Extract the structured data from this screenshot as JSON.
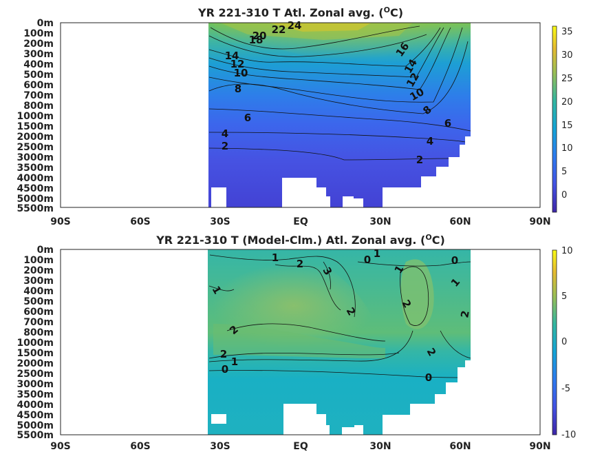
{
  "chart_data": [
    {
      "type": "heatmap",
      "title_main": "YR 221-310 T Atl. Zonal avg. (",
      "title_sup": "O",
      "title_end": "C)",
      "x_ticks": [
        "90S",
        "60S",
        "30S",
        "EQ",
        "30N",
        "60N",
        "90N"
      ],
      "x_values": [
        -90,
        -60,
        -30,
        0,
        30,
        60,
        90
      ],
      "y_ticks": [
        "0m",
        "100m",
        "200m",
        "300m",
        "400m",
        "500m",
        "600m",
        "700m",
        "800m",
        "1000m",
        "1500m",
        "2000m",
        "2500m",
        "3000m",
        "3500m",
        "4000m",
        "4500m",
        "5000m",
        "5500m"
      ],
      "colorbar_ticks": [
        "35",
        "30",
        "25",
        "20",
        "15",
        "10",
        "5",
        "0"
      ],
      "colorbar_values": [
        35,
        30,
        25,
        20,
        15,
        10,
        5,
        0
      ],
      "colorbar_range": [
        -3,
        36
      ],
      "contour_labels": [
        "24",
        "22",
        "20",
        "18",
        "16",
        "14",
        "14",
        "12",
        "12",
        "10",
        "10",
        "8",
        "8",
        "6",
        "6",
        "4",
        "4",
        "2",
        "2"
      ],
      "colormap": "parula"
    },
    {
      "type": "heatmap",
      "title_main": "YR 221-310 T (Model-Clm.) Atl. Zonal avg. (",
      "title_sup": "O",
      "title_end": "C)",
      "x_ticks": [
        "90S",
        "60S",
        "30S",
        "EQ",
        "30N",
        "60N",
        "90N"
      ],
      "x_values": [
        -90,
        -60,
        -30,
        0,
        30,
        60,
        90
      ],
      "y_ticks": [
        "0m",
        "100m",
        "200m",
        "300m",
        "400m",
        "500m",
        "600m",
        "700m",
        "800m",
        "1000m",
        "1500m",
        "2000m",
        "2500m",
        "3000m",
        "3500m",
        "4000m",
        "4500m",
        "5000m",
        "5500m"
      ],
      "colorbar_ticks": [
        "10",
        "5",
        "0",
        "-5",
        "-10"
      ],
      "colorbar_values": [
        10,
        5,
        0,
        -5,
        -10
      ],
      "colorbar_range": [
        -10,
        10
      ],
      "contour_labels": [
        "1",
        "2",
        "3",
        "0",
        "1",
        "0",
        "1",
        "1",
        "2",
        "2",
        "2",
        "2",
        "2",
        "1",
        "2",
        "1",
        "0",
        "0"
      ],
      "colormap": "parula"
    }
  ]
}
